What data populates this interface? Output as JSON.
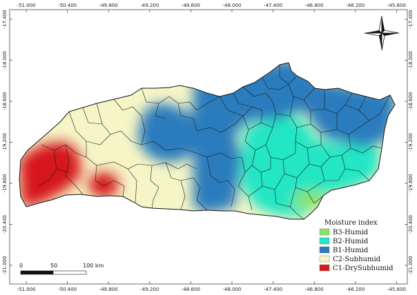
{
  "map": {
    "x_ticks": [
      "-51.000",
      "-50.400",
      "-49.800",
      "-49.200",
      "-48.600",
      "-48.000",
      "-47.400",
      "-46.800",
      "-46.200",
      "-45.600"
    ],
    "y_ticks": [
      "-17.400",
      "-18.000",
      "-18.600",
      "-19.200",
      "-19.800",
      "-20.400",
      "-21.000"
    ],
    "north_arrow_icon": "north-arrow-icon"
  },
  "legend": {
    "title": "Moisture index",
    "items": [
      {
        "label": "B3-Humid",
        "color": "#8be36b"
      },
      {
        "label": "B2-Humid",
        "color": "#22e6c4"
      },
      {
        "label": "B1-Humid",
        "color": "#2b7bbd"
      },
      {
        "label": "C2-Subhumid",
        "color": "#f6f5c6"
      },
      {
        "label": "C1-DrySubhumid",
        "color": "#d7191c"
      }
    ]
  },
  "scale_bar": {
    "labels": [
      "0",
      "50",
      "100 km"
    ]
  }
}
